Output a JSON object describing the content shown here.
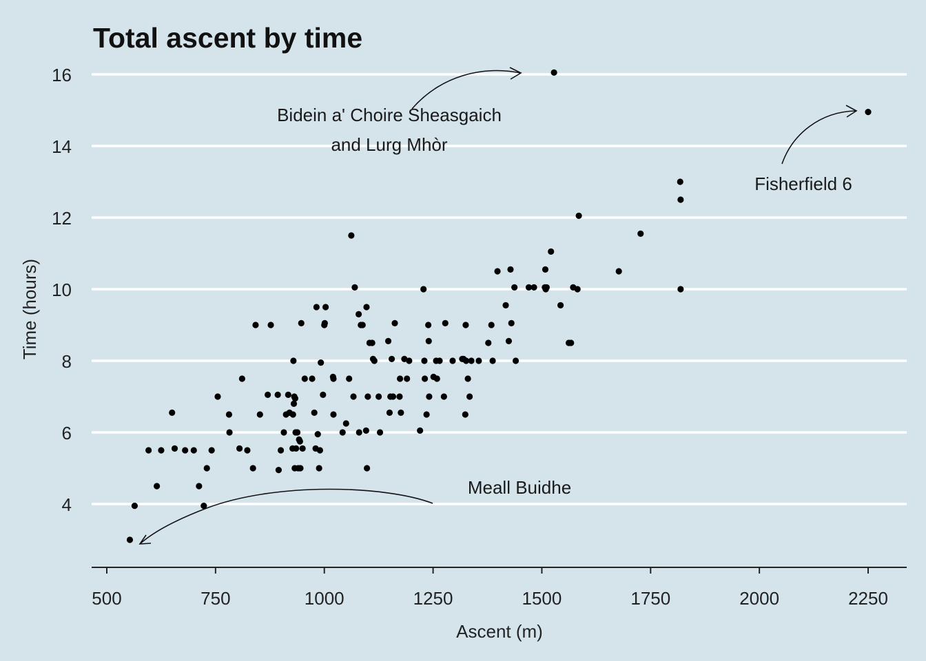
{
  "chart_data": {
    "type": "scatter",
    "title": "Total ascent by time",
    "xlabel": "Ascent (m)",
    "ylabel": "Time (hours)",
    "xlim": [
      470,
      2335
    ],
    "ylim": [
      2.2,
      17.1
    ],
    "x_ticks": [
      500,
      750,
      1000,
      1250,
      1500,
      1750,
      2000,
      2250
    ],
    "y_ticks": [
      4,
      6,
      8,
      10,
      12,
      14,
      16
    ],
    "x_tick_labels": [
      "500",
      "750",
      "1000",
      "1250",
      "1500",
      "1750",
      "2000",
      "2250"
    ],
    "y_tick_labels": [
      "4",
      "6",
      "8",
      "10",
      "12",
      "14",
      "16"
    ],
    "grid": "horizontal major",
    "points": [
      [
        553,
        3.0
      ],
      [
        564,
        3.95
      ],
      [
        596,
        5.5
      ],
      [
        615,
        4.5
      ],
      [
        625,
        5.5
      ],
      [
        650,
        6.55
      ],
      [
        656,
        5.55
      ],
      [
        680,
        5.5
      ],
      [
        700,
        5.5
      ],
      [
        712,
        4.5
      ],
      [
        723,
        3.95
      ],
      [
        730,
        5.0
      ],
      [
        741,
        5.5
      ],
      [
        755,
        7.0
      ],
      [
        781,
        6.5
      ],
      [
        782,
        6.0
      ],
      [
        805,
        5.55
      ],
      [
        811,
        7.5
      ],
      [
        823,
        5.5
      ],
      [
        836,
        5.0
      ],
      [
        842,
        9.0
      ],
      [
        852,
        6.5
      ],
      [
        870,
        7.05
      ],
      [
        877,
        9.0
      ],
      [
        893,
        7.05
      ],
      [
        895,
        4.95
      ],
      [
        900,
        5.5
      ],
      [
        907,
        6.0
      ],
      [
        912,
        6.5
      ],
      [
        917,
        7.05
      ],
      [
        920,
        6.55
      ],
      [
        927,
        5.55
      ],
      [
        928,
        6.5
      ],
      [
        929,
        8.0
      ],
      [
        930,
        6.8
      ],
      [
        931,
        7.0
      ],
      [
        932,
        5.0
      ],
      [
        933,
        6.95
      ],
      [
        934,
        6.0
      ],
      [
        935,
        5.55
      ],
      [
        938,
        6.0
      ],
      [
        940,
        5.0
      ],
      [
        942,
        5.8
      ],
      [
        944,
        5.75
      ],
      [
        945,
        5.0
      ],
      [
        947,
        9.05
      ],
      [
        950,
        5.55
      ],
      [
        955,
        7.5
      ],
      [
        972,
        7.5
      ],
      [
        977,
        6.55
      ],
      [
        980,
        5.55
      ],
      [
        982,
        9.5
      ],
      [
        985,
        5.95
      ],
      [
        988,
        5.0
      ],
      [
        990,
        5.5
      ],
      [
        992,
        7.95
      ],
      [
        997,
        7.05
      ],
      [
        1000,
        9.0
      ],
      [
        1001,
        9.05
      ],
      [
        1003,
        9.5
      ],
      [
        1020,
        7.55
      ],
      [
        1021,
        7.5
      ],
      [
        1021,
        6.5
      ],
      [
        1042,
        6.0
      ],
      [
        1050,
        6.25
      ],
      [
        1057,
        7.5
      ],
      [
        1062,
        11.5
      ],
      [
        1067,
        7.0
      ],
      [
        1070,
        10.05
      ],
      [
        1079,
        9.3
      ],
      [
        1080,
        6.0
      ],
      [
        1084,
        9.0
      ],
      [
        1088,
        9.0
      ],
      [
        1096,
        6.05
      ],
      [
        1097,
        9.5
      ],
      [
        1098,
        5.0
      ],
      [
        1100,
        7.0
      ],
      [
        1104,
        8.5
      ],
      [
        1110,
        8.5
      ],
      [
        1112,
        8.05
      ],
      [
        1115,
        8.0
      ],
      [
        1125,
        7.0
      ],
      [
        1128,
        6.0
      ],
      [
        1147,
        8.55
      ],
      [
        1150,
        6.55
      ],
      [
        1152,
        7.0
      ],
      [
        1155,
        8.05
      ],
      [
        1158,
        7.0
      ],
      [
        1162,
        9.05
      ],
      [
        1173,
        7.0
      ],
      [
        1174,
        7.5
      ],
      [
        1176,
        6.55
      ],
      [
        1184,
        8.05
      ],
      [
        1190,
        7.5
      ],
      [
        1195,
        8.0
      ],
      [
        1220,
        6.05
      ],
      [
        1228,
        10.0
      ],
      [
        1230,
        8.0
      ],
      [
        1231,
        7.5
      ],
      [
        1235,
        6.5
      ],
      [
        1239,
        9.0
      ],
      [
        1240,
        8.55
      ],
      [
        1241,
        7.0
      ],
      [
        1251,
        7.55
      ],
      [
        1257,
        8.0
      ],
      [
        1259,
        7.5
      ],
      [
        1265,
        8.0
      ],
      [
        1275,
        7.0
      ],
      [
        1278,
        9.05
      ],
      [
        1295,
        8.0
      ],
      [
        1317,
        8.05
      ],
      [
        1320,
        8.05
      ],
      [
        1324,
        6.5
      ],
      [
        1325,
        9.0
      ],
      [
        1326,
        8.0
      ],
      [
        1330,
        7.5
      ],
      [
        1334,
        7.0
      ],
      [
        1338,
        8.0
      ],
      [
        1355,
        8.0
      ],
      [
        1377,
        8.5
      ],
      [
        1384,
        9.0
      ],
      [
        1387,
        8.0
      ],
      [
        1398,
        10.5
      ],
      [
        1417,
        9.55
      ],
      [
        1424,
        8.55
      ],
      [
        1428,
        10.55
      ],
      [
        1430,
        9.05
      ],
      [
        1437,
        10.05
      ],
      [
        1440,
        8.0
      ],
      [
        1470,
        10.05
      ],
      [
        1482,
        10.05
      ],
      [
        1507,
        10.05
      ],
      [
        1508,
        10.55
      ],
      [
        1509,
        10.0
      ],
      [
        1511,
        10.05
      ],
      [
        1521,
        11.05
      ],
      [
        1528,
        16.05
      ],
      [
        1543,
        9.55
      ],
      [
        1562,
        8.5
      ],
      [
        1567,
        8.5
      ],
      [
        1572,
        10.05
      ],
      [
        1582,
        10.0
      ],
      [
        1585,
        12.05
      ],
      [
        1677,
        10.5
      ],
      [
        1727,
        11.55
      ],
      [
        1818,
        13.0
      ],
      [
        1819,
        12.5
      ],
      [
        1819,
        10.0
      ],
      [
        2250,
        14.95
      ]
    ],
    "annotations": [
      {
        "lines": [
          "Bidein a' Choire Sheasgaich",
          "and Lurg Mhòr"
        ]
      },
      {
        "lines": [
          "Fisherfield 6"
        ]
      },
      {
        "lines": [
          "Meall Buidhe"
        ]
      }
    ]
  }
}
